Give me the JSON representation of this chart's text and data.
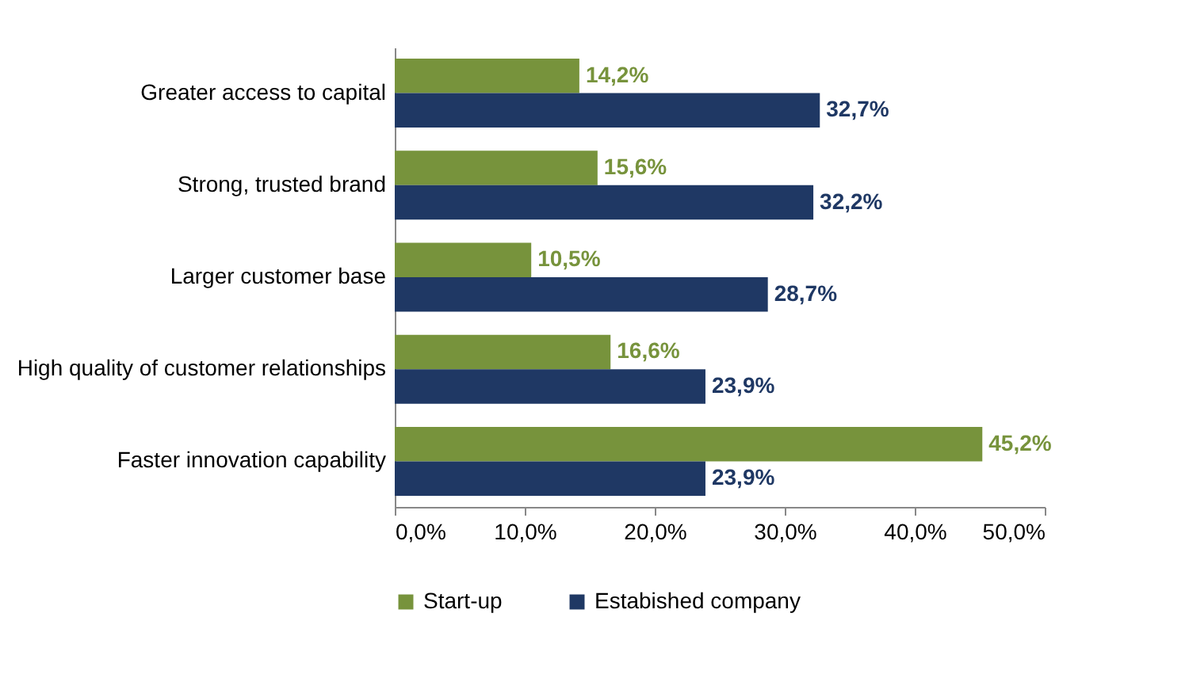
{
  "chart_data": {
    "type": "bar",
    "orientation": "horizontal",
    "categories": [
      "Greater access to capital",
      "Strong, trusted brand",
      "Larger customer base",
      "High quality of customer relationships",
      "Faster innovation capability"
    ],
    "series": [
      {
        "name": "Start-up",
        "color": "#77933c",
        "values": [
          14.2,
          15.6,
          10.5,
          16.6,
          45.2
        ],
        "value_labels": [
          "14,2%",
          "15,6%",
          "10,5%",
          "16,6%",
          "45,2%"
        ]
      },
      {
        "name": "Estabished company",
        "color": "#1f3864",
        "values": [
          32.7,
          32.2,
          28.7,
          23.9,
          23.9
        ],
        "value_labels": [
          "32,7%",
          "32,2%",
          "28,7%",
          "23,9%",
          "23,9%"
        ]
      }
    ],
    "xlim": [
      0,
      50
    ],
    "xticks": [
      {
        "value": 0,
        "label": "0,0%"
      },
      {
        "value": 10,
        "label": "10,0%"
      },
      {
        "value": 20,
        "label": "20,0%"
      },
      {
        "value": 30,
        "label": "30,0%"
      },
      {
        "value": 40,
        "label": "40,0%"
      },
      {
        "value": 50,
        "label": "50,0%"
      }
    ],
    "grid": false,
    "legend": "bottom"
  }
}
